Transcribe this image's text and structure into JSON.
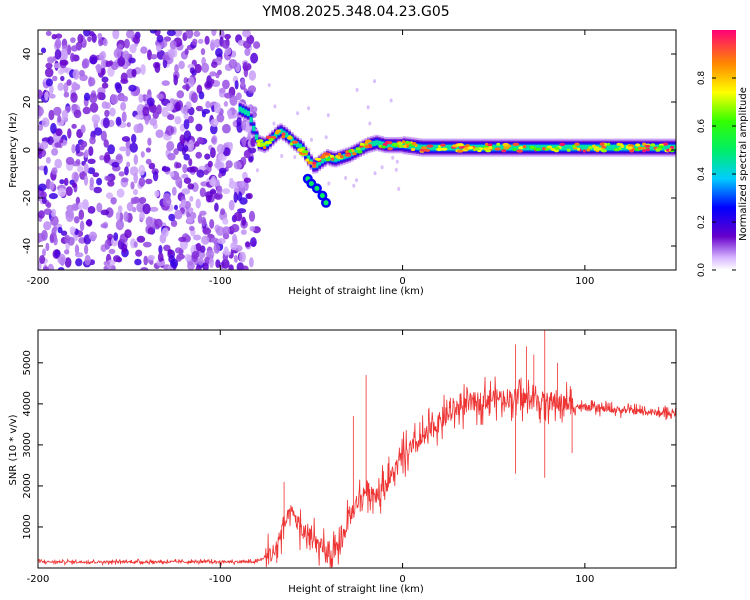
{
  "title": "YM08.2025.348.04.23.G05",
  "chart_data": [
    {
      "type": "heatmap",
      "title": "YM08.2025.348.04.23.G05",
      "xlabel": "Height of straight line (km)",
      "ylabel": "Frequency (Hz)",
      "xlim": [
        -200,
        150
      ],
      "ylim": [
        -50,
        50
      ],
      "xticks": [
        -200,
        -100,
        0,
        100
      ],
      "yticks": [
        -40,
        -20,
        0,
        20,
        40
      ],
      "colorbar": {
        "label": "Normalized spectral amplitude",
        "range": [
          0,
          1
        ],
        "ticks": [
          0.0,
          0.2,
          0.4,
          0.6,
          0.8
        ]
      },
      "features": {
        "noise_region_x": [
          -200,
          -80
        ],
        "signal_ridge": [
          [
            -90,
            17
          ],
          [
            -85,
            15
          ],
          [
            -80,
            3
          ],
          [
            -76,
            2
          ],
          [
            -72,
            5
          ],
          [
            -68,
            8
          ],
          [
            -64,
            6
          ],
          [
            -60,
            3
          ],
          [
            -56,
            1
          ],
          [
            -52,
            -4
          ],
          [
            -49,
            -7
          ],
          [
            -46,
            -5
          ],
          [
            -42,
            -3
          ],
          [
            -38,
            -4
          ],
          [
            -34,
            -3
          ],
          [
            -30,
            -2
          ],
          [
            -25,
            0
          ],
          [
            -20,
            2
          ],
          [
            -15,
            3
          ],
          [
            -10,
            2
          ],
          [
            0,
            2
          ],
          [
            10,
            1
          ],
          [
            20,
            1
          ],
          [
            40,
            1
          ],
          [
            60,
            1
          ],
          [
            80,
            1
          ],
          [
            100,
            1
          ],
          [
            120,
            1
          ],
          [
            150,
            1
          ]
        ],
        "secondary_blob": [
          [
            -52,
            -12
          ],
          [
            -50,
            -14
          ],
          [
            -47,
            -16
          ],
          [
            -44,
            -19
          ],
          [
            -42,
            -22
          ]
        ]
      }
    },
    {
      "type": "line",
      "title": "",
      "xlabel": "Height of straight line (km)",
      "ylabel": "SNR (10 * v/v)",
      "xlim": [
        -200,
        150
      ],
      "ylim": [
        0,
        5800
      ],
      "xticks": [
        -200,
        -100,
        0,
        100
      ],
      "yticks": [
        1000,
        2000,
        3000,
        4000,
        5000
      ],
      "color": "#ee3333",
      "envelope": {
        "x": [
          -200,
          -80,
          -70,
          -65,
          -60,
          -55,
          -50,
          -45,
          -40,
          -35,
          -30,
          -25,
          -20,
          -15,
          -10,
          -5,
          0,
          10,
          20,
          30,
          40,
          50,
          60,
          70,
          80,
          90,
          100,
          120,
          150
        ],
        "y": [
          150,
          150,
          400,
          1100,
          1300,
          900,
          700,
          500,
          250,
          450,
          1150,
          1600,
          1900,
          1800,
          2000,
          2300,
          2700,
          3100,
          3550,
          3900,
          4050,
          4150,
          4150,
          4100,
          4050,
          4000,
          3900,
          3850,
          3750
        ]
      },
      "noise_amplitude": [
        70,
        600,
        600,
        200
      ],
      "spikes": [
        {
          "x": -65,
          "y": 2100
        },
        {
          "x": -20,
          "y": 4700
        },
        {
          "x": -27,
          "y": 3700
        },
        {
          "x": 62,
          "y": 5450
        },
        {
          "x": 68,
          "y": 5400
        },
        {
          "x": 72,
          "y": 5200
        },
        {
          "x": 78,
          "y": 5800
        },
        {
          "x": 85,
          "y": 5000
        },
        {
          "x": 62,
          "y": 2300
        },
        {
          "x": 78,
          "y": 2200
        },
        {
          "x": 93,
          "y": 2800
        }
      ]
    }
  ]
}
